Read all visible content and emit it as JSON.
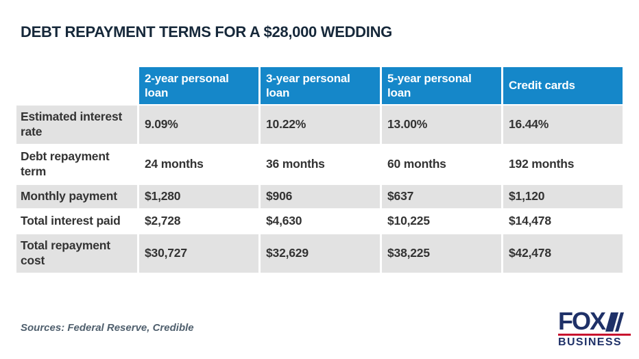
{
  "title": "DEBT REPAYMENT TERMS FOR A $28,000 WEDDING",
  "chart_data": {
    "type": "table",
    "title": "DEBT REPAYMENT TERMS FOR A $28,000 WEDDING",
    "columns": [
      "2-year personal loan",
      "3-year personal loan",
      "5-year personal loan",
      "Credit cards"
    ],
    "rows": [
      {
        "label": "Estimated interest rate",
        "values": [
          "9.09%",
          "10.22%",
          "13.00%",
          "16.44%"
        ]
      },
      {
        "label": "Debt repayment term",
        "values": [
          "24 months",
          "36 months",
          "60 months",
          "192 months"
        ]
      },
      {
        "label": "Monthly payment",
        "values": [
          "$1,280",
          "$906",
          "$637",
          "$1,120"
        ]
      },
      {
        "label": "Total interest paid",
        "values": [
          "$2,728",
          "$4,630",
          "$10,225",
          "$14,478"
        ]
      },
      {
        "label": "Total repayment cost",
        "values": [
          "$30,727",
          "$32,629",
          "$38,225",
          "$42,478"
        ]
      }
    ]
  },
  "footer": {
    "sources": "Sources: Federal Reserve, Credible"
  },
  "logo": {
    "brand": "FOX",
    "subbrand": "BUSINESS"
  },
  "colors": {
    "header_blue": "#1587c9",
    "row_gray": "#e2e2e2",
    "title_navy": "#16283a",
    "body_text": "#333333",
    "sources_gray": "#4f5f6d",
    "logo_navy": "#1f3168",
    "logo_red": "#c8102e"
  }
}
